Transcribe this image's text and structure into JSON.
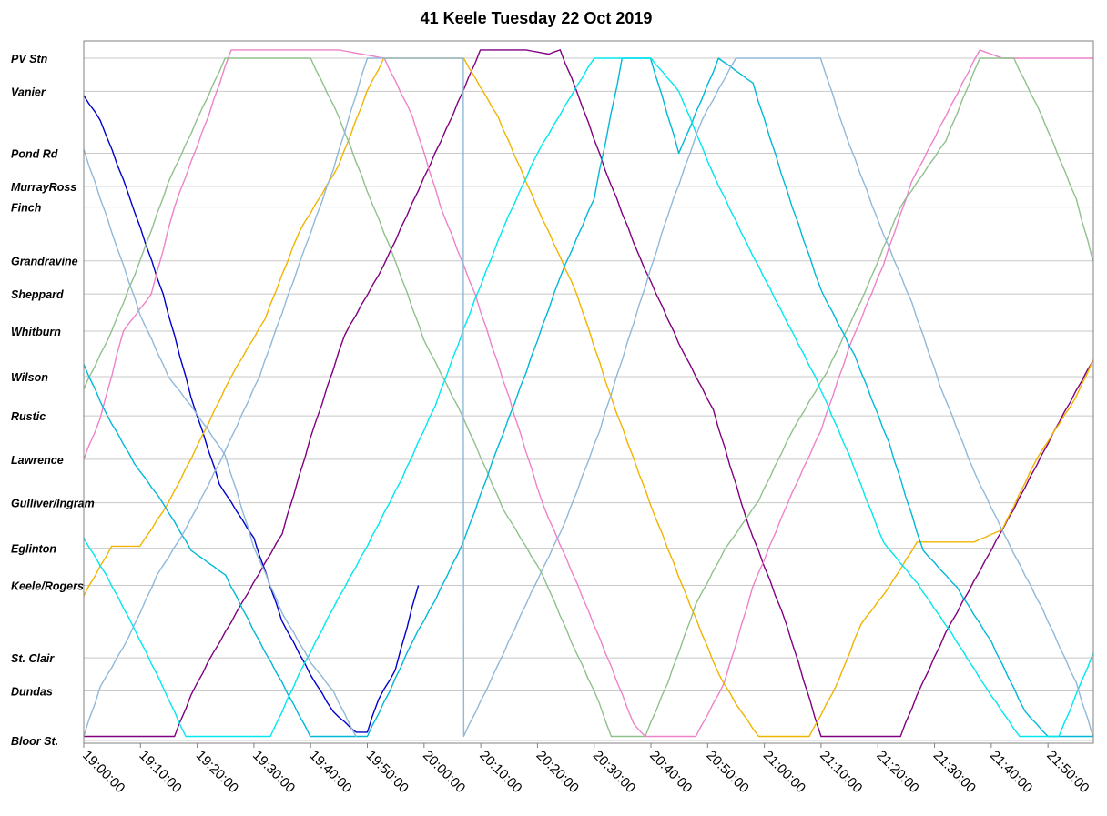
{
  "chart_data": {
    "type": "line",
    "title": "41 Keele Tuesday 22 Oct 2019",
    "xlabel": "",
    "ylabel": "",
    "x_range": [
      "19:00:00",
      "21:58:00"
    ],
    "x_ticks": [
      "19:00:00",
      "19:10:00",
      "19:20:00",
      "19:30:00",
      "19:40:00",
      "19:50:00",
      "20:00:00",
      "20:10:00",
      "20:20:00",
      "20:30:00",
      "20:40:00",
      "20:50:00",
      "21:00:00",
      "21:10:00",
      "21:20:00",
      "21:30:00",
      "21:40:00",
      "21:50:00"
    ],
    "stops": [
      {
        "name": "PV Stn",
        "km": 12.2
      },
      {
        "name": "Vanier",
        "km": 11.4
      },
      {
        "name": "Pond Rd",
        "km": 9.9
      },
      {
        "name": "MurrayRoss",
        "km": 9.1
      },
      {
        "name": "Finch",
        "km": 8.6
      },
      {
        "name": "Grandravine",
        "km": 7.3
      },
      {
        "name": "Sheppard",
        "km": 6.5
      },
      {
        "name": "Whitburn",
        "km": 5.6
      },
      {
        "name": "Wilson",
        "km": 4.5
      },
      {
        "name": "Rustic",
        "km": 3.55
      },
      {
        "name": "Lawrence",
        "km": 2.5
      },
      {
        "name": "Gulliver/Ingram",
        "km": 1.45
      },
      {
        "name": "Eglinton",
        "km": 0.35
      },
      {
        "name": "Keele/Rogers",
        "km": -0.55
      },
      {
        "name": "St. Clair",
        "km": -2.3
      },
      {
        "name": "Dundas",
        "km": -3.1
      },
      {
        "name": "Bloor St.",
        "km": -4.3
      }
    ],
    "grid": true,
    "legend": "none",
    "series": [
      {
        "color": "#0000cc",
        "points": [
          [
            "19:00",
            "11.3"
          ],
          [
            "19:03",
            "10.7"
          ],
          [
            "19:08",
            "8.9"
          ],
          [
            "19:14",
            "6.5"
          ],
          [
            "19:19",
            "4.0"
          ],
          [
            "19:24",
            "1.9"
          ],
          [
            "19:30",
            "0.6"
          ],
          [
            "19:35",
            "-1.4"
          ],
          [
            "19:40",
            "-2.7"
          ],
          [
            "19:44",
            "-3.6"
          ],
          [
            "19:48",
            "-4.1"
          ],
          [
            "19:50",
            "-4.1"
          ],
          [
            "19:52",
            "-3.3"
          ],
          [
            "19:55",
            "-2.6"
          ],
          [
            "19:59",
            "-0.55"
          ]
        ]
      },
      {
        "color": "#800080",
        "points": [
          [
            "19:00",
            "-4.2"
          ],
          [
            "19:16",
            "-4.2"
          ],
          [
            "19:19",
            "-3.2"
          ],
          [
            "19:22",
            "-2.4"
          ],
          [
            "19:27",
            "-1.2"
          ],
          [
            "19:35",
            "0.7"
          ],
          [
            "19:40",
            "3.0"
          ],
          [
            "19:46",
            "5.5"
          ],
          [
            "19:53",
            "7.2"
          ],
          [
            "19:59",
            "9.0"
          ],
          [
            "20:05",
            "10.8"
          ],
          [
            "20:10",
            "12.4"
          ],
          [
            "20:18",
            "12.4"
          ],
          [
            "20:22",
            "12.3"
          ],
          [
            "20:24",
            "12.4"
          ],
          [
            "20:27",
            "11.4"
          ],
          [
            "20:32",
            "9.5"
          ],
          [
            "20:38",
            "7.4"
          ],
          [
            "20:45",
            "5.3"
          ],
          [
            "20:51",
            "3.7"
          ],
          [
            "20:57",
            "1.0"
          ],
          [
            "21:04",
            "-1.5"
          ],
          [
            "21:10",
            "-4.2"
          ],
          [
            "21:24",
            "-4.2"
          ],
          [
            "21:27",
            "-3.2"
          ],
          [
            "21:32",
            "-1.7"
          ],
          [
            "21:38",
            "-0.2"
          ],
          [
            "21:44",
            "1.3"
          ],
          [
            "21:52",
            "3.4"
          ],
          [
            "21:58",
            "4.9"
          ]
        ]
      },
      {
        "color": "#ee82c8",
        "points": [
          [
            "19:00",
            "2.5"
          ],
          [
            "19:03",
            "3.5"
          ],
          [
            "19:07",
            "5.6"
          ],
          [
            "19:12",
            "6.5"
          ],
          [
            "19:16",
            "8.6"
          ],
          [
            "19:22",
            "10.8"
          ],
          [
            "19:26",
            "12.4"
          ],
          [
            "19:35",
            "12.4"
          ],
          [
            "19:45",
            "12.4"
          ],
          [
            "19:53",
            "12.2"
          ],
          [
            "19:58",
            "10.8"
          ],
          [
            "20:03",
            "8.6"
          ],
          [
            "20:09",
            "6.5"
          ],
          [
            "20:15",
            "4.0"
          ],
          [
            "20:21",
            "1.4"
          ],
          [
            "20:27",
            "-0.5"
          ],
          [
            "20:33",
            "-2.5"
          ],
          [
            "20:37",
            "-3.9"
          ],
          [
            "20:39",
            "-4.2"
          ],
          [
            "20:48",
            "-4.2"
          ],
          [
            "20:53",
            "-2.9"
          ],
          [
            "20:58",
            "-0.6"
          ],
          [
            "21:04",
            "1.4"
          ],
          [
            "21:10",
            "3.2"
          ],
          [
            "21:15",
            "5.2"
          ],
          [
            "21:21",
            "7.2"
          ],
          [
            "21:26",
            "9.2"
          ],
          [
            "21:32",
            "10.8"
          ],
          [
            "21:38",
            "12.4"
          ],
          [
            "21:42",
            "12.2"
          ],
          [
            "21:58",
            "12.2"
          ]
        ]
      },
      {
        "color": "#f0b400",
        "points": [
          [
            "19:00",
            "-0.8"
          ],
          [
            "19:05",
            "0.4"
          ],
          [
            "19:10",
            "0.4"
          ],
          [
            "19:15",
            "1.45"
          ],
          [
            "19:20",
            "2.8"
          ],
          [
            "19:26",
            "4.5"
          ],
          [
            "19:32",
            "5.9"
          ],
          [
            "19:38",
            "8.0"
          ],
          [
            "19:45",
            "9.6"
          ],
          [
            "19:50",
            "11.4"
          ],
          [
            "19:53",
            "12.2"
          ],
          [
            "20:07",
            "12.2"
          ],
          [
            "20:13",
            "10.8"
          ],
          [
            "20:20",
            "8.6"
          ],
          [
            "20:27",
            "6.5"
          ],
          [
            "20:33",
            "4.0"
          ],
          [
            "20:40",
            "1.4"
          ],
          [
            "20:46",
            "-0.7"
          ],
          [
            "20:52",
            "-2.7"
          ],
          [
            "20:55",
            "-3.4"
          ],
          [
            "20:59",
            "-4.2"
          ],
          [
            "21:08",
            "-4.2"
          ],
          [
            "21:13",
            "-2.9"
          ],
          [
            "21:17",
            "-1.5"
          ],
          [
            "21:22",
            "-0.6"
          ],
          [
            "21:27",
            "0.5"
          ],
          [
            "21:37",
            "0.5"
          ],
          [
            "21:42",
            "0.8"
          ],
          [
            "21:48",
            "2.5"
          ],
          [
            "21:55",
            "4.0"
          ],
          [
            "21:58",
            "4.9"
          ]
        ]
      },
      {
        "color": "#90c08c",
        "points": [
          [
            "19:00",
            "4.2"
          ],
          [
            "19:05",
            "5.6"
          ],
          [
            "19:10",
            "7.3"
          ],
          [
            "19:15",
            "9.2"
          ],
          [
            "19:20",
            "10.7"
          ],
          [
            "19:25",
            "12.2"
          ],
          [
            "19:30",
            "12.2"
          ],
          [
            "19:40",
            "12.2"
          ],
          [
            "19:45",
            "10.8"
          ],
          [
            "19:50",
            "9.0"
          ],
          [
            "19:55",
            "7.3"
          ],
          [
            "20:00",
            "5.4"
          ],
          [
            "20:07",
            "3.5"
          ],
          [
            "20:14",
            "1.3"
          ],
          [
            "20:21",
            "-0.3"
          ],
          [
            "20:26",
            "-1.9"
          ],
          [
            "20:31",
            "-3.4"
          ],
          [
            "20:33",
            "-4.2"
          ],
          [
            "20:39",
            "-4.2"
          ],
          [
            "20:43",
            "-2.9"
          ],
          [
            "20:48",
            "-1.0"
          ],
          [
            "20:53",
            "0.3"
          ],
          [
            "20:59",
            "1.5"
          ],
          [
            "21:05",
            "3.2"
          ],
          [
            "21:11",
            "4.6"
          ],
          [
            "21:18",
            "6.6"
          ],
          [
            "21:24",
            "8.6"
          ],
          [
            "21:32",
            "10.2"
          ],
          [
            "21:38",
            "12.2"
          ],
          [
            "21:44",
            "12.2"
          ],
          [
            "21:49",
            "10.8"
          ],
          [
            "21:55",
            "8.8"
          ],
          [
            "21:58",
            "7.3"
          ]
        ]
      },
      {
        "color": "#00b8d8",
        "points": [
          [
            "19:00",
            "4.8"
          ],
          [
            "19:04",
            "3.6"
          ],
          [
            "19:09",
            "2.4"
          ],
          [
            "19:14",
            "1.45"
          ],
          [
            "19:19",
            "0.3"
          ],
          [
            "19:25",
            "-0.3"
          ],
          [
            "19:31",
            "-1.9"
          ],
          [
            "19:35",
            "-2.9"
          ],
          [
            "19:40",
            "-4.2"
          ],
          [
            "19:50",
            "-4.2"
          ],
          [
            "19:54",
            "-3.1"
          ],
          [
            "19:58",
            "-1.9"
          ],
          [
            "20:02",
            "-0.9"
          ],
          [
            "20:07",
            "0.5"
          ],
          [
            "20:12",
            "2.4"
          ],
          [
            "20:18",
            "4.6"
          ],
          [
            "20:24",
            "6.9"
          ],
          [
            "20:30",
            "8.8"
          ],
          [
            "20:35",
            "12.2"
          ],
          [
            "20:40",
            "12.2"
          ],
          [
            "20:45",
            "9.9"
          ],
          [
            "20:52",
            "12.2"
          ],
          [
            "20:58",
            "11.6"
          ],
          [
            "21:04",
            "9.0"
          ],
          [
            "21:10",
            "6.6"
          ],
          [
            "21:16",
            "5.0"
          ],
          [
            "21:22",
            "2.9"
          ],
          [
            "21:28",
            "0.3"
          ],
          [
            "21:34",
            "-0.6"
          ],
          [
            "21:40",
            "-1.9"
          ],
          [
            "21:46",
            "-3.6"
          ],
          [
            "21:50",
            "-4.2"
          ],
          [
            "21:58",
            "-4.2"
          ]
        ]
      },
      {
        "color": "#00e8ee",
        "points": [
          [
            "19:00",
            "0.6"
          ],
          [
            "19:04",
            "-0.3"
          ],
          [
            "19:09",
            "-1.6"
          ],
          [
            "19:14",
            "-3.0"
          ],
          [
            "19:18",
            "-4.2"
          ],
          [
            "19:33",
            "-4.2"
          ],
          [
            "19:38",
            "-2.7"
          ],
          [
            "19:44",
            "-1.1"
          ],
          [
            "19:50",
            "0.4"
          ],
          [
            "19:56",
            "2.0"
          ],
          [
            "20:02",
            "3.8"
          ],
          [
            "20:08",
            "6.0"
          ],
          [
            "20:14",
            "8.1"
          ],
          [
            "20:20",
            "9.9"
          ],
          [
            "20:26",
            "11.3"
          ],
          [
            "20:30",
            "12.2"
          ],
          [
            "20:40",
            "12.2"
          ],
          [
            "20:45",
            "11.4"
          ],
          [
            "20:51",
            "9.4"
          ],
          [
            "20:57",
            "7.7"
          ],
          [
            "21:03",
            "6.1"
          ],
          [
            "21:09",
            "4.5"
          ],
          [
            "21:15",
            "2.6"
          ],
          [
            "21:21",
            "0.5"
          ],
          [
            "21:27",
            "-0.5"
          ],
          [
            "21:33",
            "-1.7"
          ],
          [
            "21:39",
            "-3.0"
          ],
          [
            "21:45",
            "-4.2"
          ],
          [
            "21:52",
            "-4.2"
          ],
          [
            "21:55",
            "-3.2"
          ],
          [
            "21:58",
            "-2.2"
          ]
        ]
      },
      {
        "color": "#90b8d8",
        "points": [
          [
            "19:00",
            "10.0"
          ],
          [
            "19:05",
            "8.0"
          ],
          [
            "19:10",
            "6.0"
          ],
          [
            "19:15",
            "4.5"
          ],
          [
            "19:20",
            "3.6"
          ],
          [
            "19:25",
            "2.6"
          ],
          [
            "19:30",
            "0.4"
          ],
          [
            "19:35",
            "-1.2"
          ],
          [
            "19:40",
            "-2.4"
          ],
          [
            "19:44",
            "-3.1"
          ],
          [
            "19:48",
            "-4.2"
          ],
          [
            "19:48",
            "-4.2"
          ],
          [
            "19:00",
            "-4.2"
          ],
          [
            "19:03",
            "-3.0"
          ],
          [
            "19:08",
            "-1.8"
          ],
          [
            "19:13",
            "-0.3"
          ],
          [
            "19:18",
            "0.8"
          ],
          [
            "19:25",
            "2.7"
          ],
          [
            "19:31",
            "4.5"
          ],
          [
            "19:38",
            "7.2"
          ],
          [
            "19:44",
            "9.5"
          ],
          [
            "19:50",
            "12.2"
          ],
          [
            "20:07",
            "12.2"
          ],
          [
            "20:07",
            "-4.2"
          ],
          [
            "20:12",
            "-2.8"
          ],
          [
            "20:18",
            "-1.0"
          ],
          [
            "20:25",
            "1.0"
          ],
          [
            "20:31",
            "3.2"
          ],
          [
            "20:37",
            "5.8"
          ],
          [
            "20:43",
            "8.4"
          ],
          [
            "20:49",
            "10.7"
          ],
          [
            "20:55",
            "12.2"
          ],
          [
            "21:10",
            "12.2"
          ],
          [
            "21:14",
            "10.5"
          ],
          [
            "21:20",
            "8.3"
          ],
          [
            "21:26",
            "6.3"
          ],
          [
            "21:31",
            "4.3"
          ],
          [
            "21:37",
            "2.2"
          ],
          [
            "21:43",
            "0.5"
          ],
          [
            "21:49",
            "-1.1"
          ],
          [
            "21:55",
            "-2.9"
          ],
          [
            "21:58",
            "-4.2"
          ]
        ]
      }
    ]
  }
}
